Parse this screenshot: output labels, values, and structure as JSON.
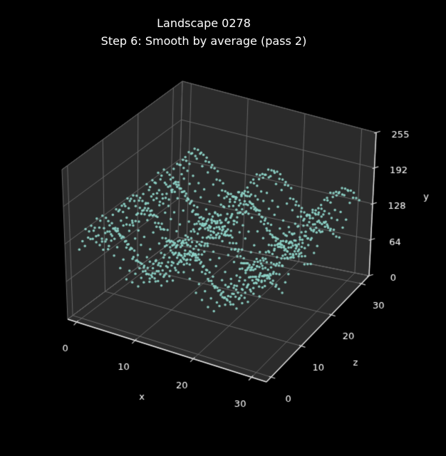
{
  "title": {
    "line1": "Landscape 0278",
    "line2": "Step 6: Smooth by average (pass 2)"
  },
  "chart_data": {
    "type": "scatter",
    "projection": "3d",
    "title": "Landscape 0278",
    "subtitle": "Step 6: Smooth by average (pass 2)",
    "xlabel": "x",
    "ylabel": "y",
    "zlabel": "z",
    "x_ticks": [
      0,
      10,
      20,
      30
    ],
    "z_ticks": [
      0,
      10,
      20,
      30
    ],
    "y_ticks": [
      0,
      64,
      128,
      192,
      255
    ],
    "xlim": [
      -1.55,
      32.55
    ],
    "zlim": [
      -1.55,
      32.55
    ],
    "ylim": [
      0,
      255
    ],
    "grid": true,
    "legend": false,
    "colors": {
      "background": "#000000",
      "pane": "#2b2b2b",
      "grid": "#666666",
      "axis_line": "#e8e8e8",
      "tick": "#d0d0d0",
      "text": "#ffffff",
      "points": "#8dd3c7"
    },
    "surface": {
      "x_range": [
        0,
        31
      ],
      "z_range": [
        0,
        31
      ],
      "heights_by_z_row": [
        [
          117,
          126,
          141,
          149,
          143,
          133,
          125,
          107,
          91,
          89,
          85,
          95,
          99,
          116,
          132,
          135,
          145,
          145,
          134,
          126,
          105,
          96,
          87,
          83,
          95,
          100,
          117,
          132,
          136,
          145,
          144,
          133
        ],
        [
          127,
          136,
          151,
          159,
          153,
          143,
          135,
          117,
          101,
          99,
          95,
          105,
          109,
          126,
          142,
          145,
          155,
          155,
          144,
          136,
          115,
          106,
          97,
          93,
          105,
          110,
          127,
          142,
          146,
          155,
          154,
          143
        ],
        [
          143,
          152,
          167,
          175,
          169,
          159,
          151,
          133,
          117,
          115,
          111,
          121,
          125,
          142,
          158,
          161,
          171,
          171,
          160,
          152,
          131,
          122,
          113,
          109,
          121,
          126,
          143,
          158,
          162,
          171,
          170,
          159
        ],
        [
          135,
          144,
          159,
          167,
          161,
          151,
          143,
          125,
          109,
          107,
          103,
          113,
          117,
          134,
          150,
          153,
          163,
          163,
          152,
          144,
          123,
          114,
          105,
          101,
          113,
          118,
          135,
          150,
          154,
          163,
          162,
          151
        ],
        [
          118,
          127,
          142,
          150,
          144,
          134,
          126,
          108,
          92,
          90,
          86,
          96,
          100,
          117,
          133,
          136,
          146,
          146,
          135,
          127,
          106,
          97,
          88,
          84,
          96,
          101,
          118,
          133,
          137,
          146,
          145,
          134
        ],
        [
          108,
          117,
          132,
          140,
          134,
          124,
          116,
          98,
          82,
          80,
          76,
          86,
          90,
          107,
          123,
          126,
          136,
          136,
          125,
          117,
          96,
          87,
          78,
          74,
          86,
          91,
          108,
          123,
          127,
          136,
          135,
          124
        ],
        [
          99,
          108,
          123,
          131,
          125,
          115,
          107,
          89,
          73,
          71,
          67,
          77,
          81,
          98,
          114,
          117,
          127,
          127,
          116,
          108,
          87,
          78,
          69,
          65,
          77,
          82,
          99,
          114,
          118,
          127,
          126,
          115
        ],
        [
          87,
          96,
          111,
          119,
          113,
          103,
          95,
          77,
          61,
          59,
          55,
          65,
          69,
          86,
          102,
          105,
          115,
          115,
          104,
          96,
          75,
          66,
          57,
          53,
          65,
          70,
          87,
          102,
          106,
          115,
          114,
          103
        ],
        [
          100,
          109,
          124,
          132,
          126,
          116,
          108,
          90,
          74,
          72,
          68,
          78,
          82,
          99,
          115,
          118,
          128,
          128,
          117,
          109,
          88,
          79,
          70,
          66,
          78,
          83,
          100,
          115,
          119,
          128,
          127,
          116
        ],
        [
          109,
          118,
          133,
          141,
          135,
          125,
          117,
          99,
          83,
          81,
          77,
          87,
          91,
          108,
          124,
          127,
          137,
          137,
          126,
          118,
          97,
          88,
          79,
          75,
          87,
          92,
          109,
          124,
          128,
          137,
          136,
          125
        ],
        [
          133,
          142,
          157,
          165,
          159,
          149,
          141,
          123,
          107,
          105,
          101,
          111,
          115,
          132,
          148,
          151,
          161,
          161,
          150,
          142,
          121,
          112,
          103,
          99,
          111,
          116,
          133,
          148,
          152,
          161,
          160,
          149
        ],
        [
          138,
          147,
          162,
          170,
          164,
          154,
          146,
          128,
          112,
          110,
          106,
          116,
          120,
          137,
          153,
          156,
          166,
          166,
          155,
          147,
          126,
          117,
          108,
          104,
          116,
          121,
          138,
          153,
          157,
          166,
          165,
          154
        ],
        [
          133,
          142,
          157,
          165,
          159,
          149,
          141,
          123,
          107,
          105,
          101,
          111,
          115,
          132,
          148,
          151,
          161,
          161,
          150,
          142,
          121,
          112,
          103,
          99,
          111,
          116,
          133,
          148,
          152,
          161,
          160,
          149
        ],
        [
          125,
          134,
          149,
          157,
          151,
          141,
          133,
          115,
          99,
          97,
          93,
          103,
          107,
          124,
          140,
          143,
          153,
          153,
          142,
          134,
          113,
          104,
          95,
          91,
          103,
          108,
          125,
          140,
          144,
          153,
          152,
          141
        ],
        [
          100,
          109,
          124,
          132,
          126,
          116,
          108,
          90,
          74,
          72,
          68,
          78,
          82,
          99,
          115,
          118,
          128,
          128,
          117,
          109,
          88,
          79,
          70,
          66,
          78,
          83,
          100,
          115,
          119,
          128,
          127,
          116
        ],
        [
          95,
          104,
          119,
          127,
          121,
          111,
          103,
          85,
          69,
          67,
          63,
          73,
          77,
          94,
          110,
          113,
          123,
          123,
          112,
          104,
          83,
          74,
          65,
          61,
          73,
          78,
          95,
          110,
          114,
          123,
          122,
          111
        ],
        [
          90,
          99,
          114,
          122,
          116,
          106,
          98,
          80,
          64,
          62,
          58,
          68,
          72,
          89,
          105,
          108,
          118,
          118,
          107,
          99,
          78,
          69,
          60,
          56,
          68,
          73,
          90,
          105,
          109,
          118,
          117,
          106
        ],
        [
          104,
          113,
          128,
          136,
          130,
          120,
          112,
          94,
          78,
          76,
          72,
          82,
          86,
          103,
          119,
          122,
          132,
          132,
          121,
          113,
          92,
          83,
          74,
          70,
          82,
          87,
          104,
          119,
          123,
          132,
          131,
          120
        ],
        [
          111,
          120,
          135,
          143,
          137,
          127,
          119,
          101,
          85,
          83,
          79,
          89,
          93,
          110,
          126,
          129,
          139,
          139,
          128,
          120,
          99,
          90,
          81,
          77,
          89,
          94,
          111,
          126,
          130,
          139,
          138,
          127
        ],
        [
          130,
          139,
          154,
          162,
          156,
          146,
          138,
          120,
          104,
          102,
          98,
          108,
          112,
          129,
          145,
          148,
          158,
          158,
          147,
          139,
          118,
          109,
          100,
          96,
          108,
          113,
          130,
          145,
          149,
          158,
          157,
          146
        ],
        [
          142,
          151,
          166,
          174,
          168,
          158,
          150,
          132,
          116,
          114,
          110,
          120,
          124,
          141,
          157,
          160,
          170,
          170,
          159,
          151,
          130,
          121,
          112,
          108,
          120,
          125,
          142,
          157,
          161,
          170,
          169,
          158
        ],
        [
          133,
          142,
          157,
          165,
          159,
          149,
          141,
          123,
          107,
          105,
          101,
          111,
          115,
          132,
          148,
          151,
          161,
          161,
          150,
          142,
          121,
          112,
          103,
          99,
          111,
          116,
          133,
          148,
          152,
          161,
          160,
          149
        ],
        [
          117,
          126,
          141,
          149,
          143,
          133,
          125,
          107,
          91,
          89,
          85,
          95,
          99,
          116,
          132,
          135,
          145,
          145,
          134,
          126,
          105,
          96,
          87,
          83,
          95,
          100,
          117,
          132,
          136,
          145,
          144,
          133
        ],
        [
          106,
          115,
          130,
          138,
          132,
          122,
          114,
          96,
          80,
          78,
          74,
          84,
          88,
          105,
          121,
          124,
          134,
          134,
          123,
          115,
          94,
          85,
          76,
          72,
          84,
          89,
          106,
          121,
          125,
          134,
          133,
          122
        ],
        [
          96,
          105,
          120,
          128,
          122,
          112,
          104,
          86,
          70,
          68,
          64,
          74,
          78,
          95,
          111,
          114,
          124,
          124,
          113,
          105,
          84,
          75,
          66,
          62,
          74,
          79,
          96,
          111,
          115,
          124,
          123,
          112
        ],
        [
          89,
          98,
          113,
          121,
          115,
          105,
          97,
          79,
          63,
          61,
          57,
          67,
          71,
          88,
          104,
          107,
          117,
          117,
          106,
          98,
          77,
          68,
          59,
          55,
          67,
          72,
          89,
          104,
          108,
          117,
          116,
          105
        ],
        [
          101,
          110,
          125,
          133,
          127,
          117,
          109,
          91,
          75,
          73,
          69,
          79,
          83,
          100,
          116,
          119,
          129,
          129,
          118,
          110,
          89,
          80,
          71,
          67,
          79,
          84,
          101,
          116,
          120,
          129,
          128,
          117
        ],
        [
          110,
          119,
          134,
          142,
          136,
          126,
          118,
          100,
          84,
          82,
          78,
          88,
          92,
          109,
          125,
          128,
          138,
          138,
          127,
          119,
          98,
          89,
          80,
          76,
          88,
          93,
          110,
          125,
          129,
          138,
          137,
          126
        ],
        [
          134,
          143,
          158,
          166,
          160,
          150,
          142,
          124,
          108,
          106,
          102,
          112,
          116,
          133,
          149,
          152,
          162,
          162,
          151,
          143,
          122,
          113,
          104,
          100,
          112,
          117,
          134,
          149,
          153,
          162,
          161,
          150
        ],
        [
          138,
          147,
          162,
          170,
          164,
          154,
          146,
          128,
          112,
          110,
          106,
          116,
          120,
          137,
          153,
          156,
          166,
          166,
          155,
          147,
          126,
          117,
          108,
          104,
          116,
          121,
          138,
          153,
          157,
          166,
          165,
          154
        ],
        [
          132,
          141,
          156,
          164,
          158,
          148,
          140,
          122,
          106,
          104,
          100,
          110,
          114,
          131,
          147,
          150,
          160,
          160,
          149,
          141,
          120,
          111,
          102,
          98,
          110,
          115,
          132,
          147,
          151,
          160,
          159,
          148
        ],
        [
          123,
          132,
          147,
          155,
          149,
          139,
          131,
          113,
          97,
          95,
          91,
          101,
          105,
          122,
          138,
          141,
          151,
          151,
          140,
          132,
          111,
          102,
          93,
          89,
          101,
          106,
          123,
          138,
          142,
          151,
          150,
          139
        ]
      ]
    },
    "view_corners": {
      "c000": [
        95,
        448
      ],
      "c100": [
        374,
        536
      ],
      "c010": [
        250,
        333
      ],
      "c110": [
        518,
        387
      ],
      "c001": [
        87,
        238
      ],
      "c101": [
        366,
        326
      ],
      "c011": [
        256,
        114
      ],
      "c111": [
        528,
        186
      ]
    }
  }
}
